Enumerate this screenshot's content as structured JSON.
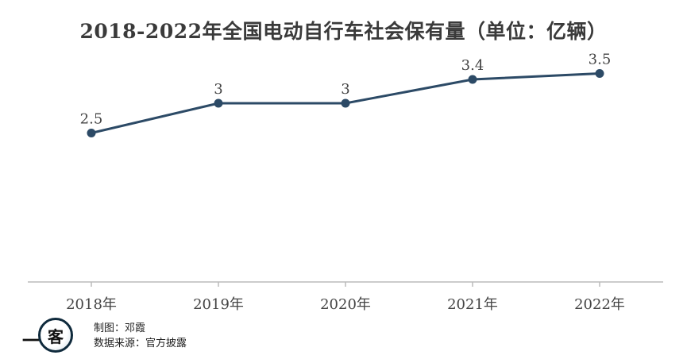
{
  "chart_data": {
    "type": "line",
    "title": "2018-2022年全国电动自行车社会保有量（单位：亿辆）",
    "x": [
      "2018年",
      "2019年",
      "2020年",
      "2021年",
      "2022年"
    ],
    "series": [
      {
        "values": [
          2.5,
          3,
          3,
          3.4,
          3.5
        ]
      }
    ],
    "data_labels": [
      "2.5",
      "3",
      "3",
      "3.4",
      "3.5"
    ],
    "ylim": [
      0,
      4
    ],
    "grid": false,
    "line_color": "#2c4a66"
  },
  "footer": {
    "logo_text_1": "一",
    "logo_text_2": "客",
    "credit_author": "制图：邓霞",
    "credit_source": "数据来源：官方披露"
  },
  "colors": {
    "line": "#2c4a66",
    "axis": "#bbbbbb",
    "logo_ring": "#0f2a3c"
  }
}
